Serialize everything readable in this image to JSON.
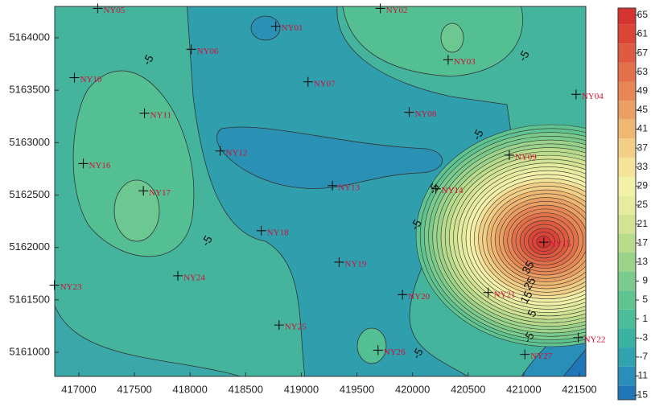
{
  "chart_data": {
    "type": "contour",
    "xlim": [
      416783,
      421558
    ],
    "ylim": [
      5160770,
      5164299
    ],
    "xticks": [
      417000,
      417500,
      418000,
      418500,
      419000,
      419500,
      420000,
      420500,
      421000,
      421500
    ],
    "yticks": [
      5161000,
      5161500,
      5162000,
      5162500,
      5163000,
      5163500,
      5164000
    ],
    "point_labels": [
      "NY05",
      "NY01",
      "NY02",
      "NY06",
      "NY03",
      "NY10",
      "NY07",
      "NY04",
      "NY11",
      "NY08",
      "NY09",
      "NY12",
      "NY16",
      "NY17",
      "NY13",
      "NY14",
      "NY15",
      "NY18",
      "NY19",
      "NY24",
      "NY23",
      "NY20",
      "NY21",
      "NY22",
      "NY25",
      "NY26",
      "NY27"
    ],
    "x": [
      417170,
      418770,
      419710,
      418010,
      420320,
      416960,
      419060,
      421470,
      417590,
      419970,
      420870,
      418270,
      417040,
      417580,
      419280,
      420210,
      421180,
      418640,
      419340,
      417890,
      416780,
      419910,
      420680,
      421490,
      418800,
      419690,
      421010
    ],
    "y": [
      5164280,
      5164110,
      5164280,
      5163890,
      5163790,
      5163620,
      5163580,
      5163460,
      5163280,
      5163290,
      5162880,
      5162920,
      5162800,
      5162540,
      5162590,
      5162560,
      5162050,
      5162160,
      5161860,
      5161730,
      5161640,
      5161550,
      5161570,
      5161140,
      5161260,
      5161020,
      5160980
    ],
    "contour_labels": [
      -5,
      -5,
      -5,
      -5,
      -5,
      -5,
      -5,
      35,
      25,
      15,
      5,
      -5
    ],
    "clim": [
      -16,
      66.5
    ],
    "colorbar_ticks": [
      -15,
      -11,
      -7,
      -3,
      1,
      5,
      9,
      13,
      17,
      21,
      25,
      29,
      33,
      37,
      41,
      45,
      49,
      53,
      57,
      61,
      65
    ],
    "colors": [
      "#1f77b8",
      "#2a8fb8",
      "#2fa3ae",
      "#3ab3a2",
      "#4bbd98",
      "#5fc48f",
      "#7bcb8c",
      "#9bd38a",
      "#b8dc8c",
      "#d2e493",
      "#e6ec9f",
      "#f3f0a8",
      "#f5e39a",
      "#f2cf86",
      "#eeb872",
      "#eaa062",
      "#e68755",
      "#e2704a",
      "#de5a40",
      "#da4538",
      "#d63430"
    ]
  }
}
